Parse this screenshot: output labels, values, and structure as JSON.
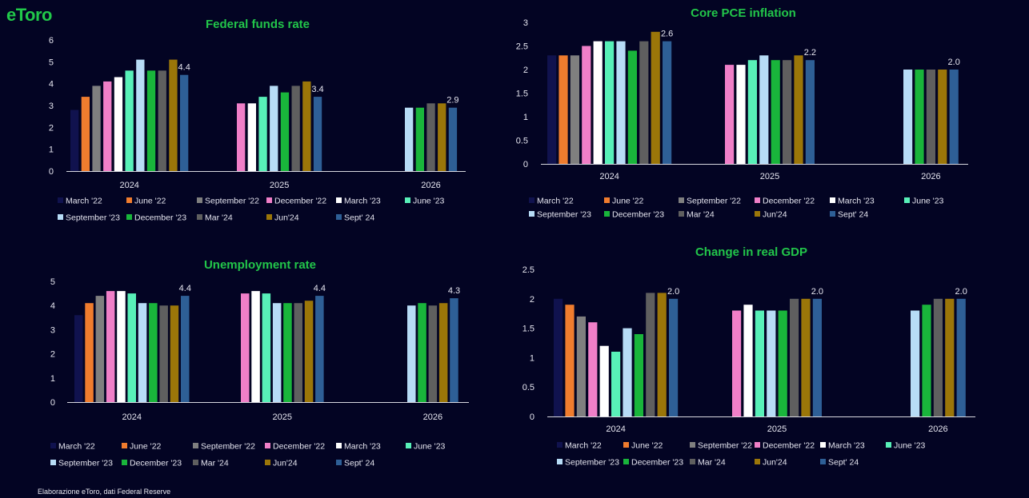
{
  "logo_text": "eToro",
  "source": "Elaborazione eToro, dati Federal Reserve",
  "series_names": [
    "March '22",
    "June '22",
    "September '22",
    "December '22",
    "March '23",
    "June '23",
    "September '23",
    "December '23",
    "Mar '24",
    "Jun'24",
    "Sept' 24"
  ],
  "colors": [
    "#10124e",
    "#f07c2e",
    "#7f7f7f",
    "#f07fc8",
    "#ffffff",
    "#58f0b8",
    "#b7dcf6",
    "#19b53b",
    "#5f5f5f",
    "#9b7609",
    "#2e5f96"
  ],
  "chart_data": [
    {
      "type": "bar",
      "title": "Federal funds rate",
      "categories": [
        "2024",
        "2025",
        "2026"
      ],
      "ylim": [
        0,
        6
      ],
      "yticks": [
        0,
        1,
        2,
        3,
        4,
        5,
        6
      ],
      "grid": false,
      "legend_position": "bottom",
      "series": [
        {
          "name": "March '22",
          "values": [
            2.8,
            null,
            null
          ]
        },
        {
          "name": "June '22",
          "values": [
            3.4,
            null,
            null
          ]
        },
        {
          "name": "September '22",
          "values": [
            3.9,
            null,
            null
          ]
        },
        {
          "name": "December '22",
          "values": [
            4.1,
            3.1,
            null
          ]
        },
        {
          "name": "March '23",
          "values": [
            4.3,
            3.1,
            null
          ]
        },
        {
          "name": "June '23",
          "values": [
            4.6,
            3.4,
            null
          ]
        },
        {
          "name": "September '23",
          "values": [
            5.1,
            3.9,
            2.9
          ]
        },
        {
          "name": "December '23",
          "values": [
            4.6,
            3.6,
            2.9
          ]
        },
        {
          "name": "Mar '24",
          "values": [
            4.6,
            3.9,
            3.1
          ]
        },
        {
          "name": "Jun'24",
          "values": [
            5.1,
            4.1,
            3.1
          ]
        },
        {
          "name": "Sept' 24",
          "values": [
            4.4,
            3.4,
            2.9
          ]
        }
      ],
      "data_labels": [
        "4.4",
        "3.4",
        "2.9"
      ]
    },
    {
      "type": "bar",
      "title": "Core PCE inflation",
      "categories": [
        "2024",
        "2025",
        "2026"
      ],
      "ylim": [
        0,
        3
      ],
      "yticks": [
        0,
        0.5,
        1,
        1.5,
        2,
        2.5,
        3
      ],
      "grid": false,
      "legend_position": "bottom",
      "series": [
        {
          "name": "March '22",
          "values": [
            2.3,
            null,
            null
          ]
        },
        {
          "name": "June '22",
          "values": [
            2.3,
            null,
            null
          ]
        },
        {
          "name": "September '22",
          "values": [
            2.3,
            null,
            null
          ]
        },
        {
          "name": "December '22",
          "values": [
            2.5,
            2.1,
            null
          ]
        },
        {
          "name": "March '23",
          "values": [
            2.6,
            2.1,
            null
          ]
        },
        {
          "name": "June '23",
          "values": [
            2.6,
            2.2,
            null
          ]
        },
        {
          "name": "September '23",
          "values": [
            2.6,
            2.3,
            2.0
          ]
        },
        {
          "name": "December '23",
          "values": [
            2.4,
            2.2,
            2.0
          ]
        },
        {
          "name": "Mar '24",
          "values": [
            2.6,
            2.2,
            2.0
          ]
        },
        {
          "name": "Jun'24",
          "values": [
            2.8,
            2.3,
            2.0
          ]
        },
        {
          "name": "Sept' 24",
          "values": [
            2.6,
            2.2,
            2.0
          ]
        }
      ],
      "data_labels": [
        "2.6",
        "2.2",
        "2.0"
      ]
    },
    {
      "type": "bar",
      "title": "Unemployment rate",
      "categories": [
        "2024",
        "2025",
        "2026"
      ],
      "ylim": [
        0,
        5
      ],
      "yticks": [
        0,
        1,
        2,
        3,
        4,
        5
      ],
      "grid": false,
      "legend_position": "bottom",
      "series": [
        {
          "name": "March '22",
          "values": [
            3.6,
            null,
            null
          ]
        },
        {
          "name": "June '22",
          "values": [
            4.1,
            null,
            null
          ]
        },
        {
          "name": "September '22",
          "values": [
            4.4,
            null,
            null
          ]
        },
        {
          "name": "December '22",
          "values": [
            4.6,
            4.5,
            null
          ]
        },
        {
          "name": "March '23",
          "values": [
            4.6,
            4.6,
            null
          ]
        },
        {
          "name": "June '23",
          "values": [
            4.5,
            4.5,
            null
          ]
        },
        {
          "name": "September '23",
          "values": [
            4.1,
            4.1,
            4.0
          ]
        },
        {
          "name": "December '23",
          "values": [
            4.1,
            4.1,
            4.1
          ]
        },
        {
          "name": "Mar '24",
          "values": [
            4.0,
            4.1,
            4.0
          ]
        },
        {
          "name": "Jun'24",
          "values": [
            4.0,
            4.2,
            4.1
          ]
        },
        {
          "name": "Sept' 24",
          "values": [
            4.4,
            4.4,
            4.3
          ]
        }
      ],
      "data_labels": [
        "4.4",
        "4.4",
        "4.3"
      ]
    },
    {
      "type": "bar",
      "title": "Change in real GDP",
      "categories": [
        "2024",
        "2025",
        "2026"
      ],
      "ylim": [
        0,
        2.5
      ],
      "yticks": [
        0,
        0.5,
        1,
        1.5,
        2,
        2.5
      ],
      "grid": false,
      "legend_position": "bottom",
      "series": [
        {
          "name": "March '22",
          "values": [
            2.0,
            null,
            null
          ]
        },
        {
          "name": "June '22",
          "values": [
            1.9,
            null,
            null
          ]
        },
        {
          "name": "September '22",
          "values": [
            1.7,
            null,
            null
          ]
        },
        {
          "name": "December '22",
          "values": [
            1.6,
            1.8,
            null
          ]
        },
        {
          "name": "March '23",
          "values": [
            1.2,
            1.9,
            null
          ]
        },
        {
          "name": "June '23",
          "values": [
            1.1,
            1.8,
            null
          ]
        },
        {
          "name": "September '23",
          "values": [
            1.5,
            1.8,
            1.8
          ]
        },
        {
          "name": "December '23",
          "values": [
            1.4,
            1.8,
            1.9
          ]
        },
        {
          "name": "Mar '24",
          "values": [
            2.1,
            2.0,
            2.0
          ]
        },
        {
          "name": "Jun'24",
          "values": [
            2.1,
            2.0,
            2.0
          ]
        },
        {
          "name": "Sept' 24",
          "values": [
            2.0,
            2.0,
            2.0
          ]
        }
      ],
      "data_labels": [
        "2.0",
        "2.0",
        "2.0"
      ]
    }
  ]
}
